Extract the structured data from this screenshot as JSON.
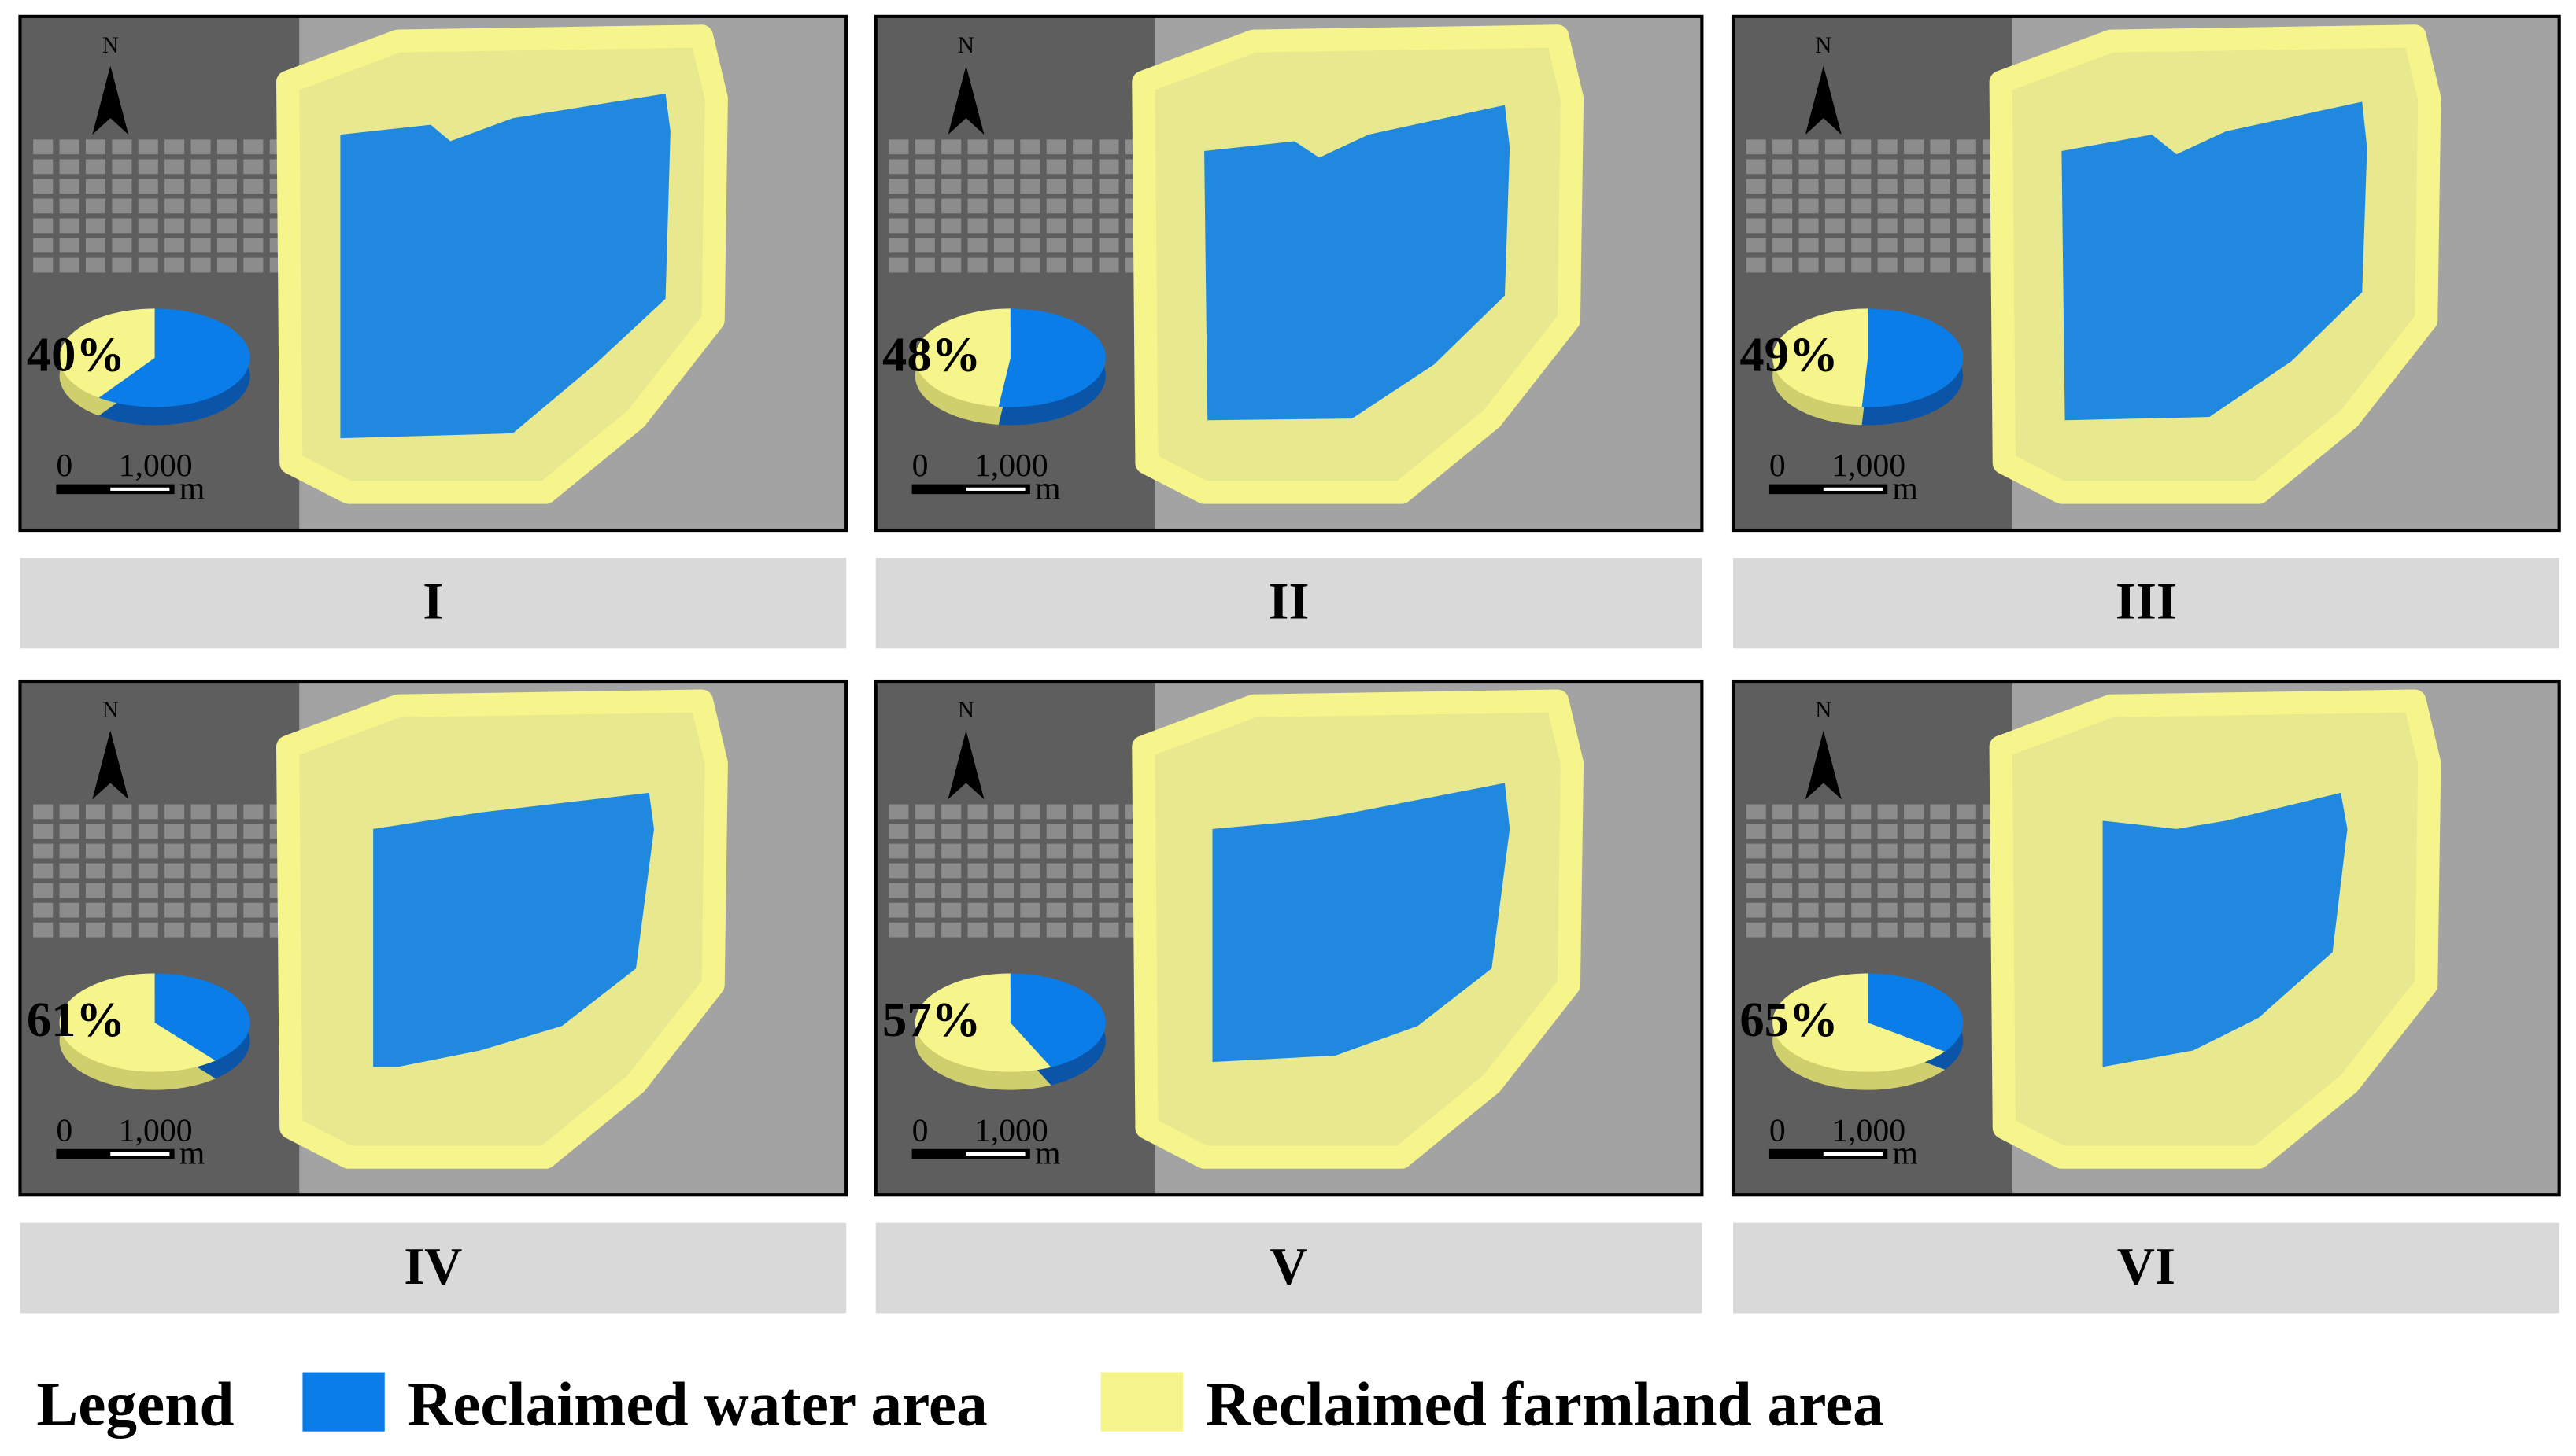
{
  "map_furniture": {
    "north": "N",
    "scale_start": "0",
    "scale_end": "1,000",
    "scale_unit": "m"
  },
  "panels": [
    {
      "label": "I",
      "farmland_share": 40,
      "farmland_label": "40%"
    },
    {
      "label": "II",
      "farmland_share": 48,
      "farmland_label": "48%"
    },
    {
      "label": "III",
      "farmland_share": 49,
      "farmland_label": "49%"
    },
    {
      "label": "IV",
      "farmland_share": 61,
      "farmland_label": "61%"
    },
    {
      "label": "V",
      "farmland_share": 57,
      "farmland_label": "57%"
    },
    {
      "label": "VI",
      "farmland_share": 65,
      "farmland_label": "65%"
    }
  ],
  "legend": {
    "title": "Legend",
    "items": [
      {
        "name": "Reclaimed water area",
        "color": "#0a7de8"
      },
      {
        "name": "Reclaimed farmland area",
        "color": "#f5f58c"
      }
    ]
  }
}
